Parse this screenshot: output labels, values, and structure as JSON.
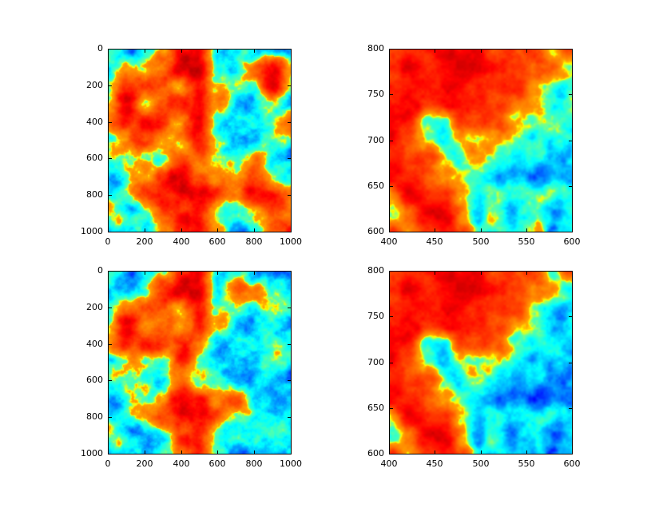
{
  "figure": {
    "background_color": "#ffffff",
    "axes_color": "#000000",
    "tick_label_color": "#000000",
    "colormap": "jet"
  },
  "chart_data": [
    {
      "id": "top-left",
      "type": "heatmap",
      "colormap": "jet",
      "title": "",
      "xlabel": "",
      "ylabel": "",
      "xlim": [
        0,
        1000
      ],
      "ylim": [
        0,
        1000
      ],
      "y_axis_inverted": true,
      "xticks": [
        "0",
        "200",
        "400",
        "600",
        "800",
        "1000"
      ],
      "yticks": [
        "0",
        "200",
        "400",
        "600",
        "800",
        "1000"
      ],
      "grid": [
        [
          0.32,
          0.33,
          0.36,
          0.5,
          0.8,
          0.82,
          0.45,
          0.38,
          0.42,
          0.4,
          0.36
        ],
        [
          0.36,
          0.62,
          0.58,
          0.62,
          0.85,
          0.85,
          0.46,
          0.36,
          0.6,
          0.83,
          0.55
        ],
        [
          0.46,
          0.85,
          0.85,
          0.8,
          0.52,
          0.85,
          0.52,
          0.4,
          0.42,
          0.8,
          0.45
        ],
        [
          0.5,
          0.86,
          0.42,
          0.85,
          0.85,
          0.85,
          0.46,
          0.36,
          0.36,
          0.46,
          0.4
        ],
        [
          0.62,
          0.88,
          0.85,
          0.85,
          0.55,
          0.85,
          0.46,
          0.32,
          0.36,
          0.4,
          0.66
        ],
        [
          0.42,
          0.56,
          0.85,
          0.6,
          0.52,
          0.85,
          0.5,
          0.32,
          0.32,
          0.36,
          0.4
        ],
        [
          0.36,
          0.38,
          0.46,
          0.52,
          0.85,
          0.72,
          0.42,
          0.5,
          0.72,
          0.4,
          0.36
        ],
        [
          0.38,
          0.36,
          0.5,
          0.8,
          0.86,
          0.56,
          0.46,
          0.42,
          0.8,
          0.56,
          0.4
        ],
        [
          0.36,
          0.42,
          0.62,
          0.85,
          0.88,
          0.85,
          0.62,
          0.56,
          0.84,
          0.84,
          0.6
        ],
        [
          0.36,
          0.36,
          0.52,
          0.85,
          0.86,
          0.85,
          0.56,
          0.38,
          0.46,
          0.62,
          0.56
        ],
        [
          0.32,
          0.34,
          0.42,
          0.56,
          0.8,
          0.85,
          0.7,
          0.36,
          0.4,
          0.68,
          0.82
        ]
      ],
      "texture": {
        "seed": 3,
        "octaves": 5,
        "scale": 34,
        "amp": 0.72,
        "edge_width": 0.04
      }
    },
    {
      "id": "top-right",
      "type": "heatmap",
      "colormap": "jet",
      "title": "",
      "xlabel": "",
      "ylabel": "",
      "xlim": [
        400,
        600
      ],
      "ylim": [
        600,
        800
      ],
      "y_axis_inverted": false,
      "xticks": [
        "400",
        "450",
        "500",
        "550",
        "600"
      ],
      "yticks": [
        "800",
        "750",
        "700",
        "650",
        "600"
      ],
      "grid": [
        [
          0.84,
          0.85,
          0.86,
          0.88,
          0.86,
          0.85,
          0.83,
          0.8,
          0.76,
          0.48,
          0.8
        ],
        [
          0.85,
          0.87,
          0.85,
          0.86,
          0.88,
          0.86,
          0.84,
          0.8,
          0.7,
          0.6,
          0.5
        ],
        [
          0.85,
          0.85,
          0.87,
          0.89,
          0.87,
          0.85,
          0.84,
          0.74,
          0.56,
          0.46,
          0.42
        ],
        [
          0.84,
          0.85,
          0.85,
          0.88,
          0.9,
          0.86,
          0.8,
          0.6,
          0.46,
          0.42,
          0.44
        ],
        [
          0.85,
          0.82,
          0.48,
          0.42,
          0.84,
          0.85,
          0.74,
          0.5,
          0.42,
          0.38,
          0.42
        ],
        [
          0.86,
          0.8,
          0.55,
          0.38,
          0.55,
          0.6,
          0.55,
          0.46,
          0.4,
          0.36,
          0.4
        ],
        [
          0.86,
          0.85,
          0.74,
          0.55,
          0.5,
          0.5,
          0.46,
          0.42,
          0.36,
          0.34,
          0.36
        ],
        [
          0.85,
          0.86,
          0.8,
          0.7,
          0.52,
          0.46,
          0.4,
          0.36,
          0.34,
          0.36,
          0.34
        ],
        [
          0.52,
          0.78,
          0.85,
          0.82,
          0.56,
          0.42,
          0.38,
          0.36,
          0.34,
          0.33,
          0.36
        ],
        [
          0.46,
          0.58,
          0.85,
          0.85,
          0.62,
          0.4,
          0.36,
          0.34,
          0.36,
          0.34,
          0.34
        ],
        [
          0.8,
          0.52,
          0.82,
          0.86,
          0.78,
          0.44,
          0.36,
          0.36,
          0.52,
          0.33,
          0.36
        ]
      ],
      "texture": {
        "seed": 5,
        "octaves": 4,
        "scale": 26,
        "amp": 0.45,
        "edge_width": 0.05
      }
    },
    {
      "id": "bottom-left",
      "type": "heatmap",
      "colormap": "jet",
      "title": "",
      "xlabel": "",
      "ylabel": "",
      "xlim": [
        0,
        1000
      ],
      "ylim": [
        0,
        1000
      ],
      "y_axis_inverted": true,
      "xticks": [
        "0",
        "200",
        "400",
        "600",
        "800",
        "1000"
      ],
      "yticks": [
        "0",
        "200",
        "400",
        "600",
        "800",
        "1000"
      ],
      "grid": [
        [
          0.32,
          0.32,
          0.34,
          0.42,
          0.72,
          0.84,
          0.46,
          0.42,
          0.36,
          0.33,
          0.32
        ],
        [
          0.33,
          0.36,
          0.48,
          0.76,
          0.85,
          0.8,
          0.42,
          0.7,
          0.56,
          0.35,
          0.33
        ],
        [
          0.4,
          0.7,
          0.8,
          0.8,
          0.52,
          0.84,
          0.46,
          0.4,
          0.36,
          0.34,
          0.4
        ],
        [
          0.46,
          0.85,
          0.52,
          0.8,
          0.58,
          0.8,
          0.4,
          0.36,
          0.34,
          0.36,
          0.36
        ],
        [
          0.56,
          0.86,
          0.8,
          0.8,
          0.78,
          0.55,
          0.38,
          0.34,
          0.36,
          0.4,
          0.36
        ],
        [
          0.36,
          0.46,
          0.56,
          0.46,
          0.76,
          0.46,
          0.36,
          0.34,
          0.33,
          0.36,
          0.34
        ],
        [
          0.34,
          0.36,
          0.4,
          0.44,
          0.78,
          0.52,
          0.38,
          0.36,
          0.4,
          0.36,
          0.33
        ],
        [
          0.36,
          0.34,
          0.4,
          0.56,
          0.82,
          0.72,
          0.46,
          0.6,
          0.4,
          0.36,
          0.34
        ],
        [
          0.34,
          0.36,
          0.42,
          0.76,
          0.85,
          0.8,
          0.56,
          0.4,
          0.36,
          0.34,
          0.33
        ],
        [
          0.33,
          0.34,
          0.38,
          0.48,
          0.8,
          0.82,
          0.52,
          0.38,
          0.35,
          0.33,
          0.32
        ],
        [
          0.32,
          0.33,
          0.36,
          0.42,
          0.62,
          0.8,
          0.56,
          0.35,
          0.33,
          0.32,
          0.31
        ]
      ],
      "texture": {
        "seed": 3,
        "octaves": 5,
        "scale": 34,
        "amp": 0.72,
        "edge_width": 0.04
      }
    },
    {
      "id": "bottom-right",
      "type": "heatmap",
      "colormap": "jet",
      "title": "",
      "xlabel": "",
      "ylabel": "",
      "xlim": [
        400,
        600
      ],
      "ylim": [
        600,
        800
      ],
      "y_axis_inverted": false,
      "xticks": [
        "400",
        "450",
        "500",
        "550",
        "600"
      ],
      "yticks": [
        "800",
        "750",
        "700",
        "650",
        "600"
      ],
      "grid": [
        [
          0.84,
          0.85,
          0.86,
          0.88,
          0.86,
          0.85,
          0.83,
          0.8,
          0.74,
          0.4,
          0.8
        ],
        [
          0.85,
          0.87,
          0.85,
          0.86,
          0.88,
          0.86,
          0.84,
          0.78,
          0.62,
          0.5,
          0.4
        ],
        [
          0.85,
          0.85,
          0.87,
          0.89,
          0.87,
          0.85,
          0.82,
          0.68,
          0.46,
          0.36,
          0.33
        ],
        [
          0.84,
          0.85,
          0.85,
          0.88,
          0.9,
          0.86,
          0.78,
          0.52,
          0.38,
          0.33,
          0.35
        ],
        [
          0.85,
          0.82,
          0.44,
          0.36,
          0.82,
          0.84,
          0.7,
          0.42,
          0.34,
          0.3,
          0.33
        ],
        [
          0.86,
          0.8,
          0.52,
          0.32,
          0.5,
          0.55,
          0.48,
          0.38,
          0.32,
          0.29,
          0.32
        ],
        [
          0.86,
          0.85,
          0.72,
          0.5,
          0.44,
          0.42,
          0.38,
          0.34,
          0.3,
          0.28,
          0.3
        ],
        [
          0.85,
          0.86,
          0.8,
          0.68,
          0.46,
          0.38,
          0.34,
          0.3,
          0.28,
          0.3,
          0.28
        ],
        [
          0.46,
          0.76,
          0.85,
          0.82,
          0.52,
          0.36,
          0.32,
          0.3,
          0.28,
          0.27,
          0.3
        ],
        [
          0.4,
          0.54,
          0.85,
          0.85,
          0.58,
          0.34,
          0.3,
          0.28,
          0.3,
          0.28,
          0.28
        ],
        [
          0.8,
          0.48,
          0.82,
          0.86,
          0.76,
          0.38,
          0.3,
          0.3,
          0.28,
          0.27,
          0.3
        ]
      ],
      "texture": {
        "seed": 5,
        "octaves": 4,
        "scale": 26,
        "amp": 0.45,
        "edge_width": 0.05
      }
    }
  ]
}
